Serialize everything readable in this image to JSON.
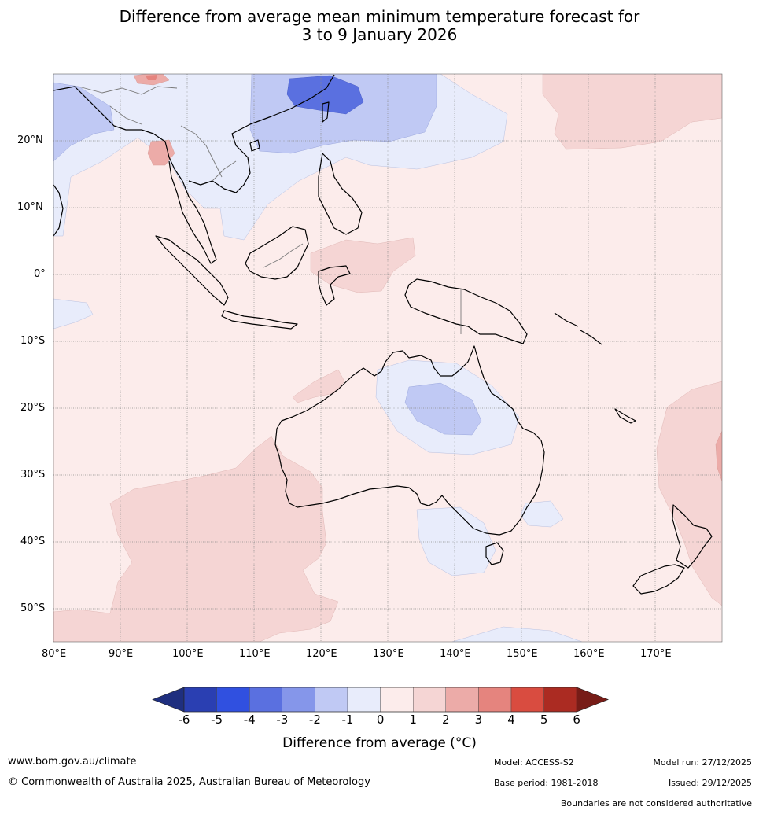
{
  "title": {
    "line1": "Difference from average mean minimum temperature forecast for",
    "line2": "3 to 9 January 2026"
  },
  "map": {
    "region": "Australia, Indonesia and South-East Asia",
    "lon_labels": [
      "80°E",
      "90°E",
      "100°E",
      "110°E",
      "120°E",
      "130°E",
      "140°E",
      "150°E",
      "160°E",
      "170°E"
    ],
    "lat_labels": [
      "20°N",
      "10°N",
      "0°",
      "10°S",
      "20°S",
      "30°S",
      "40°S",
      "50°S"
    ],
    "anomaly_colors": {
      "-6": "#1f2f7f",
      "-5": "#2a3fb2",
      "-4": "#3050e0",
      "-3": "#5a70e0",
      "-2": "#8596ea",
      "-1": "#c0c9f4",
      "0": "#e8ecfb",
      "1": "#fceceb",
      "2": "#f5d5d4",
      "3": "#ecaba8",
      "4": "#e5847e",
      "5": "#d94c40",
      "6": "#ab2b22",
      "max": "#771c17"
    }
  },
  "colorbar": {
    "ticks": [
      "-6",
      "-5",
      "-4",
      "-3",
      "-2",
      "-1",
      "0",
      "1",
      "2",
      "3",
      "4",
      "5",
      "6"
    ],
    "colors": [
      "#1f2f7f",
      "#2a3fb2",
      "#3050e0",
      "#5a70e0",
      "#8596ea",
      "#c0c9f4",
      "#e8ecfb",
      "#fceceb",
      "#f5d5d4",
      "#ecaba8",
      "#e5847e",
      "#d94c40",
      "#ab2b22",
      "#771c17"
    ],
    "label": "Difference from average (°C)",
    "label_prefix": "Difference from average (",
    "label_unit": "°C",
    "label_suffix": ")"
  },
  "footer": {
    "website": "www.bom.gov.au/climate",
    "copyright": "© Commonwealth of Australia 2025, Australian Bureau of Meteorology",
    "model": "Model: ACCESS-S2",
    "base_period": "Base period: 1981-2018",
    "model_run": "Model run: 27/12/2025",
    "issued": "Issued: 29/12/2025",
    "disclaimer": "Boundaries are not considered authoritative"
  }
}
